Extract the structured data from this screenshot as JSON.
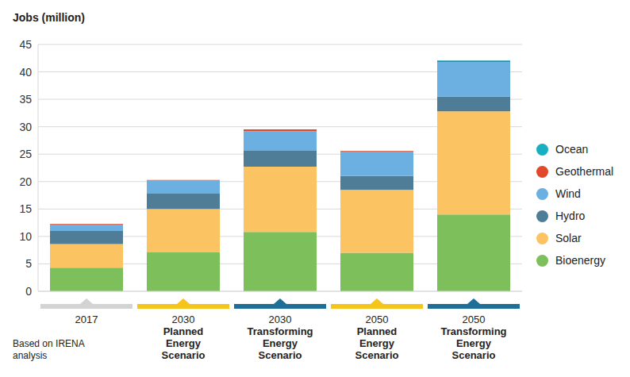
{
  "chart_data": {
    "type": "bar",
    "stacked": true,
    "grid": true,
    "legend": "right",
    "y_label": "Jobs (million)",
    "annotations": [
      "Based on IRENA analysis"
    ],
    "categories": [
      "2017",
      "2030 Planned Energy Scenario",
      "2030 Transforming Energy Scenario",
      "2050 Planned Energy Scenario",
      "2050 Transforming Energy Scenario"
    ],
    "ylim": [
      0,
      45
    ],
    "yticks": [
      0,
      5,
      10,
      15,
      20,
      25,
      30,
      35,
      40,
      45
    ],
    "series": [
      {
        "name": "Bioenergy",
        "color": "#7dbf5b",
        "values": [
          4.3,
          7.1,
          10.8,
          7.0,
          14.0
        ]
      },
      {
        "name": "Solar",
        "color": "#fbc362",
        "values": [
          4.3,
          7.9,
          11.9,
          11.5,
          18.8
        ]
      },
      {
        "name": "Hydro",
        "color": "#4f7c97",
        "values": [
          2.4,
          2.8,
          2.9,
          2.5,
          2.7
        ]
      },
      {
        "name": "Wind",
        "color": "#6cb0e2",
        "values": [
          1.2,
          2.4,
          3.6,
          4.5,
          6.3
        ]
      },
      {
        "name": "Geothermal",
        "color": "#e2482c",
        "values": [
          0.1,
          0.1,
          0.3,
          0.1,
          0.2
        ]
      },
      {
        "name": "Ocean",
        "color": "#19afc3",
        "values": [
          0,
          0,
          0,
          0,
          0.1
        ]
      }
    ]
  }
}
